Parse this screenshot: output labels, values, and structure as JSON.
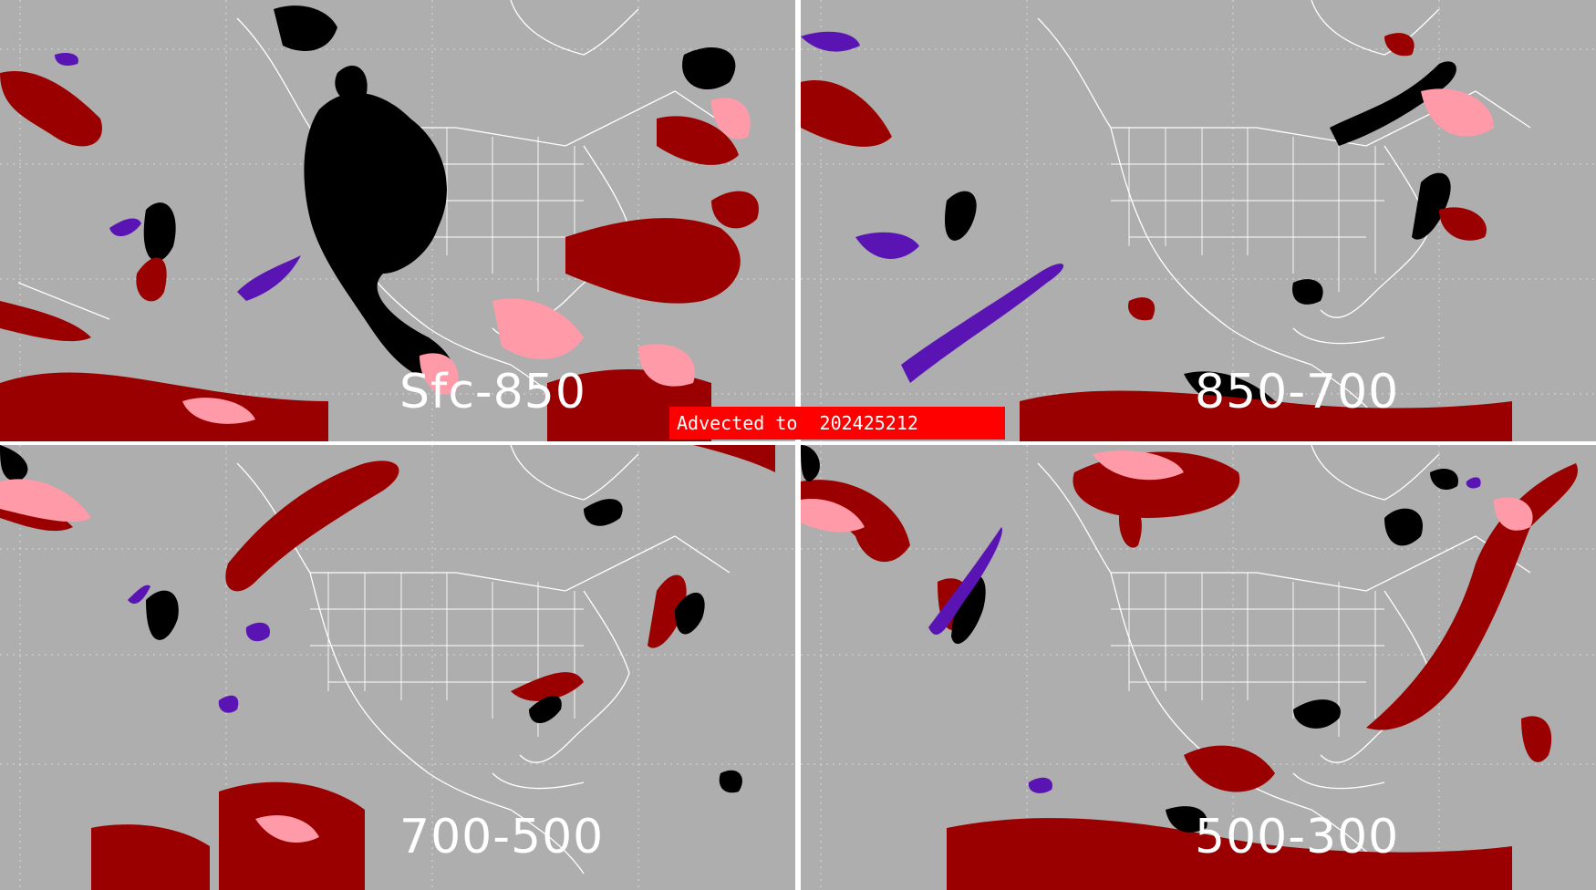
{
  "banner": {
    "text": "Advected to  202425212"
  },
  "panels": [
    {
      "id": "tl",
      "label": "Sfc-850"
    },
    {
      "id": "tr",
      "label": "850-700"
    },
    {
      "id": "bl",
      "label": "700-500"
    },
    {
      "id": "br",
      "label": "500-300"
    }
  ],
  "colors": {
    "background": "#aeaeae",
    "dark_red": "#9b0000",
    "pink": "#ff9aa8",
    "light_red": "#ff5a6a",
    "black": "#000000",
    "purple": "#5a14b4",
    "outline": "#ffffff"
  }
}
